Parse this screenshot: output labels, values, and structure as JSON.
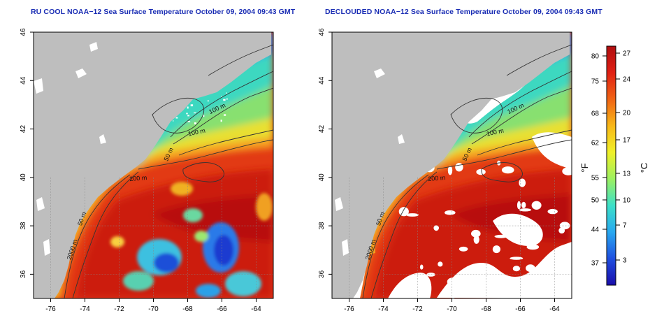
{
  "panels": [
    {
      "title": "RU COOL NOAA−12 Sea Surface Temperature October 09, 2004 09:43 GMT",
      "variant": "raw",
      "contour_labels": [
        "100 m",
        "100 m",
        "50 m",
        "200 m",
        "50 m",
        "2000 m"
      ],
      "x_ticks": [
        "-76",
        "-74",
        "-72",
        "-70",
        "-68",
        "-66",
        "-64"
      ],
      "y_ticks": [
        "46",
        "44",
        "42",
        "40",
        "38",
        "36"
      ]
    },
    {
      "title": "DECLOUDED NOAA−12 Sea Surface Temperature October 09, 2004 09:43 GMT",
      "variant": "declouded",
      "contour_labels": [
        "100 m",
        "100 m",
        "50 m",
        "200 m",
        "50 m",
        "2000 m"
      ],
      "x_ticks": [
        "-76",
        "-74",
        "-72",
        "-70",
        "-68",
        "-66",
        "-64"
      ],
      "y_ticks": [
        "46",
        "44",
        "42",
        "40",
        "38",
        "36"
      ]
    }
  ],
  "colorbar": {
    "f_label": "°F",
    "c_label": "°C",
    "f_ticks": [
      "80",
      "75",
      "68",
      "62",
      "55",
      "50",
      "44",
      "37"
    ],
    "c_ticks": [
      "27",
      "24",
      "20",
      "17",
      "13",
      "10",
      "7",
      "3"
    ],
    "gradient_colors": [
      "#1a0dab",
      "#1f4fe0",
      "#28a8f0",
      "#3ce0c8",
      "#9cf060",
      "#f0f028",
      "#f8b818",
      "#f06414",
      "#e02014",
      "#b00e10"
    ]
  },
  "colors": {
    "land": "#bebebe",
    "cloud": "#ffffff",
    "contour": "#333333",
    "frame": "#000000"
  }
}
